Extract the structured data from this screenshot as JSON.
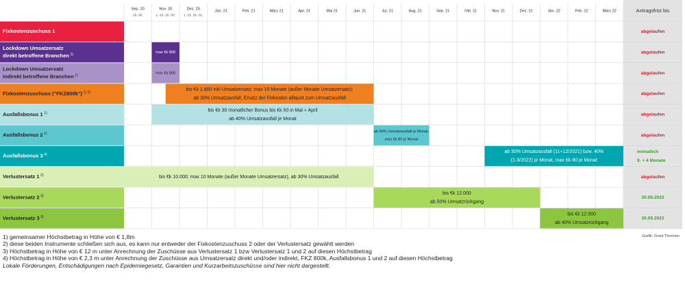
{
  "chart_data": {
    "type": "gantt",
    "header": {
      "columns": [
        {
          "label": "Sep. 20",
          "sub": "16.-30."
        },
        {
          "label": "Nov. 20",
          "sub": "1.-15.  16.-30."
        },
        {
          "label": "Dez. 20",
          "sub": "1.-15.  16.-31."
        },
        {
          "label": "Jän. 21"
        },
        {
          "label": "Feb. 21"
        },
        {
          "label": "März 21"
        },
        {
          "label": "Apr. 21"
        },
        {
          "label": "Mai 21"
        },
        {
          "label": "Jun. 21"
        },
        {
          "label": "Jul. 21"
        },
        {
          "label": "Aug. 21"
        },
        {
          "label": "Sep. 21"
        },
        {
          "label": "Okt. 21"
        },
        {
          "label": "Nov. 21"
        },
        {
          "label": "Dez. 21"
        },
        {
          "label": "Jän. 22"
        },
        {
          "label": "Feb. 22"
        },
        {
          "label": "März 22"
        }
      ],
      "deadline_header": "Antragsfrist bis"
    },
    "rows": [
      {
        "name": "Fixkostenzuschuss 1",
        "sup": "",
        "color": "#e8213f",
        "text_color": "#ffffff",
        "bars": [],
        "deadline": [
          "abgelaufen"
        ],
        "deadline_color": "#cc2233"
      },
      {
        "name": "Lockdown Umsatzersatz",
        "name2": "direkt betroffene Branchen",
        "sup": "1)",
        "color": "#5b3190",
        "text_color": "#ffffff",
        "bars": [
          {
            "start": 1,
            "end": 2,
            "color": "#5b3190",
            "text_color": "#ffffff",
            "lines": [
              "max €k 800"
            ]
          }
        ],
        "deadline": [
          "abgelaufen"
        ],
        "deadline_color": "#cc2233"
      },
      {
        "name": "Lockdown Umsatzersatz",
        "name2": "indirekt betroffene Branchen",
        "sup": "1)",
        "color": "#a892c8",
        "text_color": "#222222",
        "bars": [
          {
            "start": 1,
            "end": 2,
            "color": "#a892c8",
            "text_color": "#222222",
            "lines": [
              "max €k 800"
            ]
          }
        ],
        "deadline": [
          "abgelaufen"
        ],
        "deadline_color": "#cc2233"
      },
      {
        "name": "Fixkostenzuschuss (\"FKZ800k\")",
        "sup": "1) 2)",
        "color": "#f07f1f",
        "text_color": "#222222",
        "bars": [
          {
            "start": 1.5,
            "end": 9,
            "color": "#f07f1f",
            "text_color": "#222222",
            "lines": [
              "bis €k 1.800 inkl Umsatzersatz; max 10 Monate (außer Monate Umsatzersatz);",
              "ab 30% Umsatzausfall, Ersatz der Fixkosten alliquot zum Umsatzausfall"
            ]
          }
        ],
        "deadline": [
          "abgelaufen"
        ],
        "deadline_color": "#cc2233"
      },
      {
        "name": "Ausfallsbonus 1",
        "sup": "1)",
        "color": "#b3e2e5",
        "text_color": "#222222",
        "bars": [
          {
            "start": 1,
            "end": 9,
            "color": "#b3e2e5",
            "text_color": "#222222",
            "lines": [
              "bis €k 30 monatlicher Bonus bis €k 50 in Mai + April",
              "ab 40% Umsatzausfall je Monat"
            ]
          }
        ],
        "deadline": [
          "abgelaufen"
        ],
        "deadline_color": "#cc2233"
      },
      {
        "name": "Ausfallsbonus 2",
        "sup": "1)",
        "color": "#5dc7cf",
        "text_color": "#222222",
        "bars": [
          {
            "start": 9,
            "end": 11,
            "color": "#5dc7cf",
            "text_color": "#222222",
            "lines": [
              "ab 50% Umsatzausfall je Monat,",
              "max €k 80 je Monat"
            ]
          }
        ],
        "deadline": [
          "abgelaufen"
        ],
        "deadline_color": "#cc2233"
      },
      {
        "name": "Ausfallsbonus 3",
        "sup": "4)",
        "color": "#00a7b0",
        "text_color": "#ffffff",
        "bars": [
          {
            "start": 13,
            "end": 18,
            "color": "#00a7b0",
            "text_color": "#ffffff",
            "lines": [
              "ab 30% Umsatzausfall (11+12/2021) bzw. 40%",
              "(1-3/2022) je Monat, max €k 80 je Monat"
            ]
          }
        ],
        "deadline": [
          "monatlich",
          "9. + 4 Monate"
        ],
        "deadline_color": "#3d9a2e"
      },
      {
        "name": "Verlustersatz 1",
        "sup": "2)",
        "color": "#d9efb5",
        "text_color": "#222222",
        "bars": [
          {
            "start": 0,
            "end": 9,
            "color": "#d9efb5",
            "text_color": "#222222",
            "lines": [
              "bis €k 10.000; max 10 Monate (außer Monate Umsatzersatz), ab 30% Umsatzausfall"
            ]
          }
        ],
        "deadline": [
          "abgelaufen"
        ],
        "deadline_color": "#cc2233"
      },
      {
        "name": "Verlustersatz 2",
        "sup": "3)",
        "color": "#a8d95b",
        "text_color": "#222222",
        "bars": [
          {
            "start": 9,
            "end": 15,
            "color": "#a8d95b",
            "text_color": "#222222",
            "lines": [
              "bis €k 12.000",
              "ab 50% Umsatzrückgang"
            ]
          }
        ],
        "deadline": [
          "30.06.2022"
        ],
        "deadline_color": "#3d9a2e"
      },
      {
        "name": "Verlustersatz 3",
        "sup": "3)",
        "color": "#8cc63f",
        "text_color": "#222222",
        "bars": [
          {
            "start": 15,
            "end": 18,
            "color": "#8cc63f",
            "text_color": "#222222",
            "lines": [
              "bis €k 12.000",
              "ab 40% Umsatzrückgang"
            ]
          }
        ],
        "deadline": [
          "30.09.2022"
        ],
        "deadline_color": "#3d9a2e"
      }
    ]
  },
  "footnotes": [
    "1) gemeinsamer Höchstbetrag in Höhe von € 1,8m",
    "2) diese beiden Instrumente schließen sich aus, es kann nur entweder der Fixkostenzuschuss 2 oder der Verlustersatz gewählt werden",
    "3) Höchstbetrag in Höhe von € 12 m unter Anrechnung der Zuschüsse aus Verlustersatz 1 bzw Verlustersatz 1 und 2 auf diesen Höchstbetrag",
    "4) Höchstbetrag in Höhe von € 2,3 m unter Anrechnung der Zuschüsse aus Umsatzersatz direkt und/oder indirekt, FKZ 800k, Ausfallsbonus 1 und 2 auf diesen Höchstbetrag"
  ],
  "footnote_italic": "Lokale Förderungen, Entschädigungen nach Epidemiegesetz, Garantien und Kurzarbeitszuschüsse sind hier nicht dargestellt.",
  "credit": "Grafik: Grant Thornton"
}
